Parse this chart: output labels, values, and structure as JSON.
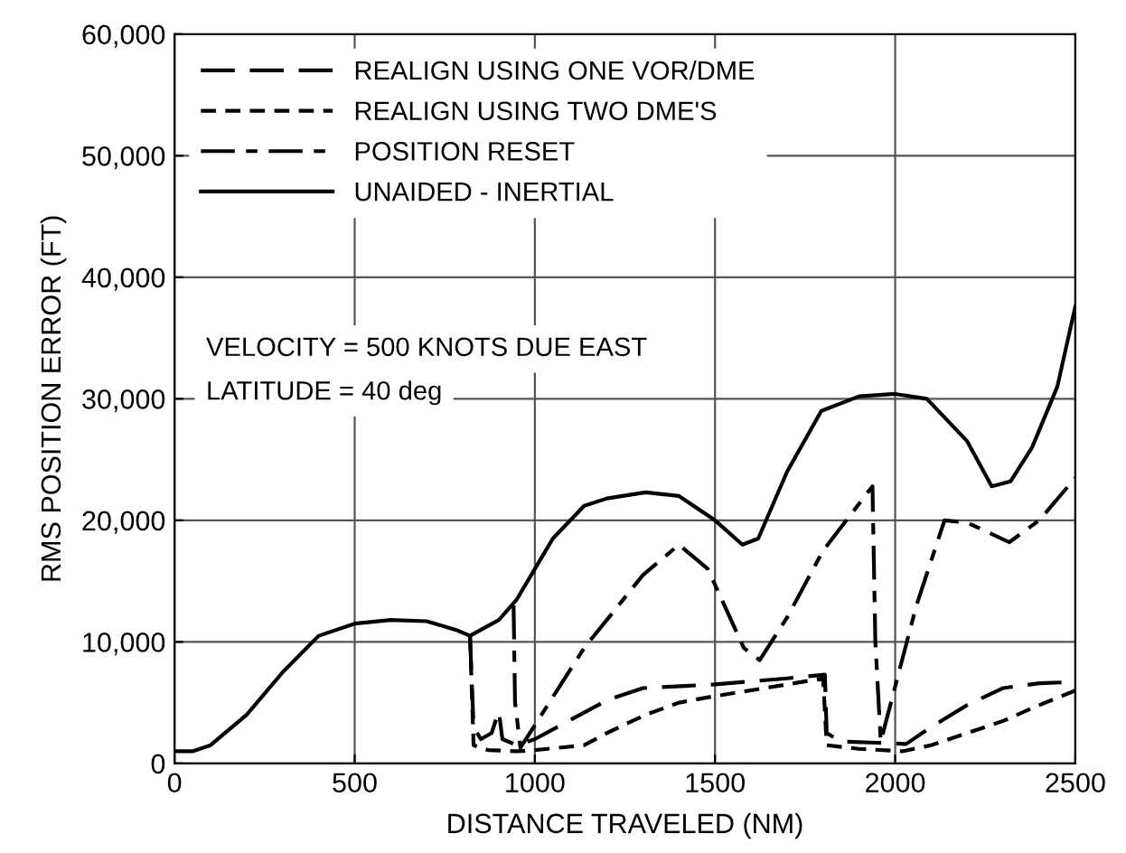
{
  "chart_data": {
    "type": "line",
    "xlabel": "DISTANCE TRAVELED (NM)",
    "ylabel": "RMS POSITION ERROR (FT)",
    "xlim": [
      0,
      2500
    ],
    "xticks": [
      0,
      500,
      1000,
      1500,
      2000,
      2500
    ],
    "ylim": [
      0,
      60000
    ],
    "yticks": [
      {
        "value": 0,
        "label": "0"
      },
      {
        "value": 10000,
        "label": "10,000"
      },
      {
        "value": 20000,
        "label": "20,000"
      },
      {
        "value": 30000,
        "label": "30,000"
      },
      {
        "value": 40000,
        "label": "40,000"
      },
      {
        "value": 50000,
        "label": "50,000"
      },
      {
        "value": 60000,
        "label": "60,000"
      }
    ],
    "grid": true,
    "legend": "top left",
    "marker": "none",
    "series": [
      {
        "name": "REALIGN USING ONE VOR/DME",
        "color": "#000000",
        "line_style": "long dashed",
        "x": [
          820,
          830,
          850,
          880,
          900,
          910,
          950,
          1000,
          1100,
          1200,
          1300,
          1500,
          1700,
          1805,
          1810,
          1850,
          1950,
          2030,
          2100,
          2200,
          2300,
          2400,
          2500
        ],
        "values": [
          10500,
          3000,
          2000,
          2500,
          4300,
          2000,
          1500,
          2000,
          3600,
          5200,
          6200,
          6500,
          7000,
          7300,
          2500,
          1800,
          1700,
          1600,
          3000,
          4800,
          6200,
          6600,
          6700
        ]
      },
      {
        "name": "REALIGN USING TWO DME'S",
        "color": "#000000",
        "line_style": "dashed",
        "x": [
          820,
          830,
          870,
          950,
          1000,
          1137,
          1200,
          1307,
          1400,
          1492,
          1700,
          1800,
          1810,
          1900,
          2020,
          2100,
          2200,
          2300,
          2400,
          2500
        ],
        "values": [
          10500,
          1500,
          1100,
          1000,
          1100,
          1500,
          2500,
          4000,
          5000,
          5500,
          6500,
          7000,
          1500,
          1200,
          1000,
          1500,
          2500,
          3500,
          4800,
          6000
        ]
      },
      {
        "name": "POSITION RESET",
        "color": "#000000",
        "line_style": "dashdot",
        "x": [
          941,
          945,
          960,
          1137,
          1300,
          1400,
          1480,
          1580,
          1624,
          1700,
          1800,
          1937,
          1945,
          1960,
          2059,
          2137,
          2200,
          2317,
          2400,
          2500
        ],
        "values": [
          13000,
          5000,
          1300,
          9500,
          15500,
          18000,
          16000,
          9500,
          8500,
          12000,
          17500,
          22800,
          10000,
          1800,
          13000,
          20000,
          19800,
          18200,
          20000,
          23500
        ]
      },
      {
        "name": "UNAIDED - INERTIAL",
        "color": "#000000",
        "line_style": "solid",
        "x": [
          0,
          50,
          100,
          200,
          300,
          400,
          500,
          600,
          700,
          780,
          820,
          900,
          950,
          1000,
          1050,
          1137,
          1200,
          1307,
          1400,
          1500,
          1576,
          1620,
          1700,
          1795,
          1900,
          2000,
          2088,
          2200,
          2268,
          2320,
          2380,
          2450,
          2500
        ],
        "values": [
          1000,
          1000,
          1500,
          4000,
          7500,
          10500,
          11500,
          11800,
          11700,
          11000,
          10500,
          11800,
          13500,
          16000,
          18500,
          21200,
          21800,
          22300,
          22000,
          20000,
          18000,
          18500,
          24000,
          29000,
          30200,
          30400,
          30000,
          26500,
          22800,
          23200,
          26000,
          31000,
          37600
        ]
      }
    ],
    "annotations": [
      "VELOCITY = 500 KNOTS DUE EAST",
      "LATITUDE = 40 deg"
    ]
  }
}
